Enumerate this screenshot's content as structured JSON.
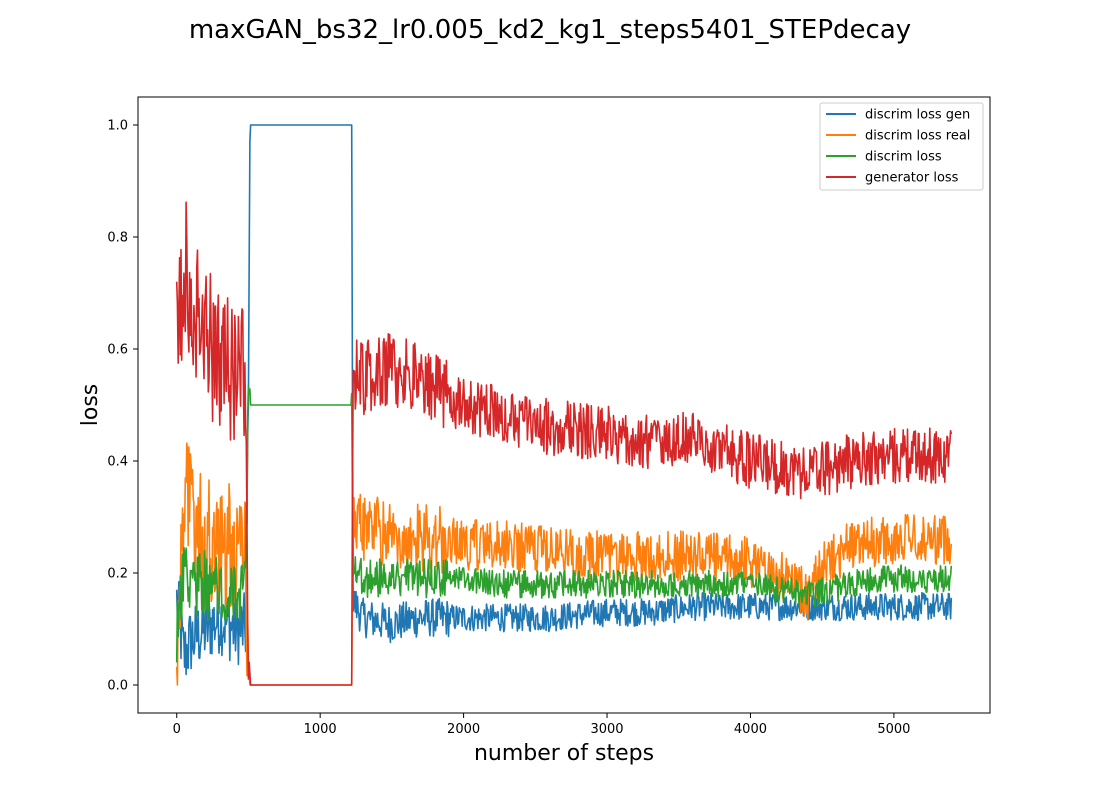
{
  "chart_data": {
    "type": "line",
    "title": "maxGAN_bs32_lr0.005_kd2_kg1_steps5401_STEPdecay",
    "xlabel": "number of steps",
    "ylabel": "loss",
    "xlim": [
      -270,
      5670
    ],
    "ylim": [
      -0.05,
      1.05
    ],
    "xticks": [
      0,
      1000,
      2000,
      3000,
      4000,
      5000
    ],
    "yticks": [
      0.0,
      0.2,
      0.4,
      0.6,
      0.8,
      1.0
    ],
    "xtick_labels": [
      "0",
      "1000",
      "2000",
      "3000",
      "4000",
      "5000"
    ],
    "ytick_labels": [
      "0.0",
      "0.2",
      "0.4",
      "0.6",
      "0.8",
      "1.0"
    ],
    "grid": false,
    "legend_position": "top-right",
    "series": [
      {
        "name": "discrim loss gen",
        "color": "#1f77b4",
        "x": [
          0,
          50,
          100,
          200,
          300,
          400,
          480,
          500,
          510,
          1000,
          1220,
          1230,
          1300,
          1500,
          1700,
          2000,
          2300,
          2600,
          3000,
          3300,
          3600,
          4000,
          4400,
          4700,
          5000,
          5400
        ],
        "y": [
          0.15,
          0.05,
          0.08,
          0.1,
          0.12,
          0.1,
          0.1,
          0.5,
          1.0,
          1.0,
          1.0,
          0.15,
          0.12,
          0.11,
          0.12,
          0.12,
          0.12,
          0.12,
          0.13,
          0.13,
          0.14,
          0.14,
          0.14,
          0.14,
          0.14,
          0.14
        ]
      },
      {
        "name": "discrim loss real",
        "color": "#ff7f0e",
        "x": [
          0,
          50,
          100,
          200,
          300,
          400,
          480,
          500,
          510,
          1000,
          1220,
          1230,
          1300,
          1500,
          1700,
          2000,
          2300,
          2600,
          3000,
          3300,
          3600,
          4000,
          4200,
          4400,
          4500,
          4700,
          5000,
          5400
        ],
        "y": [
          0.05,
          0.35,
          0.3,
          0.25,
          0.25,
          0.24,
          0.24,
          0.02,
          0.0,
          0.0,
          0.0,
          0.28,
          0.28,
          0.27,
          0.26,
          0.25,
          0.25,
          0.24,
          0.23,
          0.23,
          0.23,
          0.22,
          0.2,
          0.16,
          0.21,
          0.25,
          0.26,
          0.26
        ]
      },
      {
        "name": "discrim loss",
        "color": "#2ca02c",
        "x": [
          0,
          50,
          100,
          200,
          300,
          400,
          480,
          500,
          510,
          1000,
          1220,
          1230,
          1300,
          1500,
          1700,
          2000,
          2300,
          2600,
          3000,
          3300,
          3600,
          4000,
          4400,
          4700,
          5000,
          5400
        ],
        "y": [
          0.08,
          0.2,
          0.19,
          0.18,
          0.18,
          0.18,
          0.18,
          0.5,
          0.5,
          0.5,
          0.5,
          0.2,
          0.19,
          0.19,
          0.19,
          0.19,
          0.18,
          0.18,
          0.18,
          0.18,
          0.18,
          0.18,
          0.16,
          0.18,
          0.19,
          0.19
        ]
      },
      {
        "name": "generator loss",
        "color": "#d62728",
        "x": [
          0,
          50,
          100,
          200,
          300,
          400,
          480,
          500,
          510,
          1000,
          1220,
          1230,
          1300,
          1500,
          1700,
          2000,
          2300,
          2600,
          3000,
          3300,
          3600,
          4000,
          4400,
          4700,
          5000,
          5400
        ],
        "y": [
          0.6,
          0.75,
          0.7,
          0.62,
          0.58,
          0.55,
          0.55,
          0.03,
          0.0,
          0.0,
          0.0,
          0.55,
          0.55,
          0.56,
          0.54,
          0.5,
          0.48,
          0.46,
          0.45,
          0.43,
          0.44,
          0.4,
          0.38,
          0.4,
          0.41,
          0.41
        ]
      }
    ]
  }
}
